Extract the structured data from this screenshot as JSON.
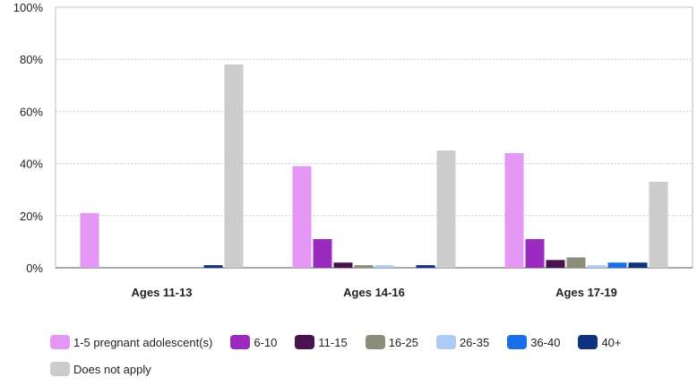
{
  "chart_data": {
    "type": "bar",
    "categories": [
      "Ages 11-13",
      "Ages 14-16",
      "Ages 17-19"
    ],
    "series": [
      {
        "name": "1-5 pregnant adolescent(s)",
        "color": "#e597f5",
        "values": [
          21,
          39,
          44
        ]
      },
      {
        "name": "6-10",
        "color": "#9b2bbf",
        "values": [
          0,
          11,
          11
        ]
      },
      {
        "name": "11-15",
        "color": "#4a1350",
        "values": [
          0,
          2,
          3
        ]
      },
      {
        "name": "16-25",
        "color": "#8c8c7a",
        "values": [
          0,
          1,
          4
        ]
      },
      {
        "name": "26-35",
        "color": "#aecbf7",
        "values": [
          0,
          1,
          1
        ]
      },
      {
        "name": "36-40",
        "color": "#1a6fe8",
        "values": [
          0,
          0,
          2
        ]
      },
      {
        "name": "40+",
        "color": "#0f3380",
        "values": [
          1,
          1,
          2
        ]
      },
      {
        "name": "Does not apply",
        "color": "#cccccc",
        "values": [
          78,
          45,
          33
        ]
      }
    ],
    "yticks": [
      "0%",
      "20%",
      "40%",
      "60%",
      "80%",
      "100%"
    ],
    "ylim": [
      0,
      100
    ],
    "grid": true,
    "legend_position": "bottom"
  }
}
